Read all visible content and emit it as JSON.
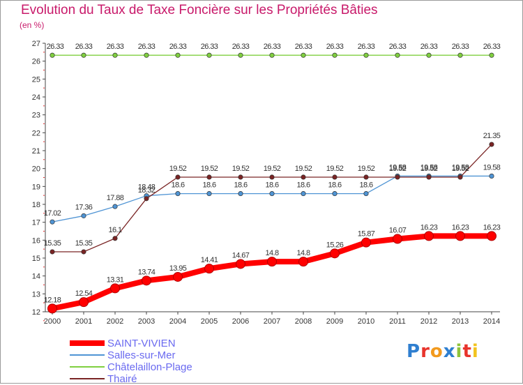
{
  "chart_data": {
    "type": "line",
    "title": "Evolution du Taux de Taxe Foncière sur les Propriétés Bâties",
    "unit_label": "(en %)",
    "xlabel": "",
    "ylabel": "",
    "ylim": [
      12,
      27
    ],
    "y_ticks": [
      "12",
      "13",
      "14",
      "15",
      "16",
      "17",
      "18",
      "19",
      "20",
      "21",
      "22",
      "23",
      "24",
      "25",
      "26",
      "27"
    ],
    "grid": false,
    "legend_position": "bottom-left",
    "categories": [
      "2000",
      "2001",
      "2002",
      "2003",
      "2004",
      "2005",
      "2006",
      "2007",
      "2008",
      "2009",
      "2010",
      "2011",
      "2012",
      "2013",
      "2014"
    ],
    "series": [
      {
        "name": "SAINT-VIVIEN",
        "color": "#ff0000",
        "values": [
          12.18,
          12.54,
          13.31,
          13.74,
          13.95,
          14.41,
          14.67,
          14.8,
          14.8,
          15.26,
          15.87,
          16.07,
          16.23,
          16.23,
          16.23
        ],
        "labels": [
          "12.18",
          "12.54",
          "13.31",
          "13.74",
          "13.95",
          "14.41",
          "14.67",
          "14.8",
          "14.8",
          "15.26",
          "15.87",
          "16.07",
          "16.23",
          "16.23",
          "16.23"
        ]
      },
      {
        "name": "Salles-sur-Mer",
        "color": "#4f94d4",
        "values": [
          17.02,
          17.36,
          17.88,
          18.48,
          18.6,
          18.6,
          18.6,
          18.6,
          18.6,
          18.6,
          18.6,
          19.58,
          19.58,
          19.58,
          19.58
        ],
        "labels": [
          "17.02",
          "17.36",
          "17.88",
          "18.48",
          "18.6",
          "18.6",
          "18.6",
          "18.6",
          "18.6",
          "18.6",
          "18.6",
          "19.58",
          "19.58",
          "19.58",
          "19.58"
        ]
      },
      {
        "name": "Châtelaillon-Plage",
        "color": "#7fcf3f",
        "values": [
          26.33,
          26.33,
          26.33,
          26.33,
          26.33,
          26.33,
          26.33,
          26.33,
          26.33,
          26.33,
          26.33,
          26.33,
          26.33,
          26.33,
          26.33
        ],
        "labels": [
          "26.33",
          "26.33",
          "26.33",
          "26.33",
          "26.33",
          "26.33",
          "26.33",
          "26.33",
          "26.33",
          "26.33",
          "26.33",
          "26.33",
          "26.33",
          "26.33",
          "26.33"
        ]
      },
      {
        "name": "Thairé",
        "color": "#7a2424",
        "values": [
          15.35,
          15.35,
          16.1,
          18.32,
          19.52,
          19.52,
          19.52,
          19.52,
          19.52,
          19.52,
          19.52,
          19.52,
          19.52,
          19.52,
          21.35
        ],
        "labels": [
          "15.35",
          "15.35",
          "16.1",
          "18.32",
          "19.52",
          "19.52",
          "19.52",
          "19.52",
          "19.52",
          "19.52",
          "19.52",
          "19.52",
          "19.52",
          "19.52",
          "21.35"
        ]
      }
    ]
  },
  "logo": {
    "text": "Proxiti",
    "letter_colors": [
      "#2f7fd0",
      "#e8342c",
      "#f29a1e",
      "#2f7fd0",
      "#8fc43c",
      "#e8342c",
      "#f2c31e"
    ]
  }
}
